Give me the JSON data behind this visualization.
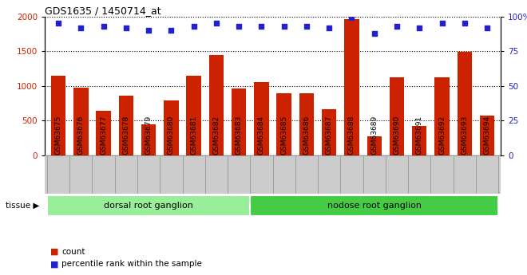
{
  "title": "GDS1635 / 1450714_at",
  "categories": [
    "GSM63675",
    "GSM63676",
    "GSM63677",
    "GSM63678",
    "GSM63679",
    "GSM63680",
    "GSM63681",
    "GSM63682",
    "GSM63683",
    "GSM63684",
    "GSM63685",
    "GSM63686",
    "GSM63687",
    "GSM63688",
    "GSM63689",
    "GSM63690",
    "GSM63691",
    "GSM63692",
    "GSM63693",
    "GSM63694"
  ],
  "counts": [
    1150,
    980,
    640,
    860,
    450,
    790,
    1150,
    1440,
    960,
    1060,
    890,
    900,
    660,
    1960,
    280,
    1120,
    420,
    1120,
    1490,
    570
  ],
  "percentile": [
    95,
    92,
    93,
    92,
    90,
    90,
    93,
    95,
    93,
    93,
    93,
    93,
    92,
    99,
    88,
    93,
    92,
    95,
    95,
    92
  ],
  "bar_color": "#cc2200",
  "dot_color": "#2222cc",
  "ylim_left": [
    0,
    2000
  ],
  "ylim_right": [
    0,
    100
  ],
  "yticks_left": [
    0,
    500,
    1000,
    1500,
    2000
  ],
  "yticks_right": [
    0,
    25,
    50,
    75,
    100
  ],
  "tissue_groups": [
    {
      "label": "dorsal root ganglion",
      "start": 0,
      "end": 9,
      "color": "#99ee99"
    },
    {
      "label": "nodose root ganglion",
      "start": 9,
      "end": 20,
      "color": "#44cc44"
    }
  ],
  "legend_count_label": "count",
  "legend_pct_label": "percentile rank within the sample",
  "tissue_label": "tissue",
  "tick_area_color": "#cccccc",
  "plot_bg_color": "#ffffff"
}
